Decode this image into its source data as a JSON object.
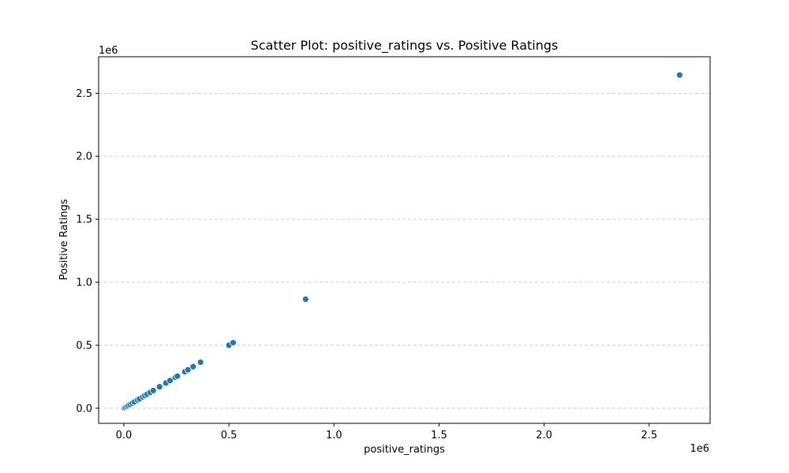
{
  "chart_data": {
    "type": "scatter",
    "title": "Scatter Plot: positive_ratings vs. Positive Ratings",
    "xlabel": "positive_ratings",
    "ylabel": "Positive Ratings",
    "x_scale_label": "1e6",
    "y_scale_label": "1e6",
    "xlim": [
      -120000,
      2790000
    ],
    "ylim": [
      -120000,
      2790000
    ],
    "x_ticks": [
      {
        "value": 0,
        "label": "0.0"
      },
      {
        "value": 500000,
        "label": "0.5"
      },
      {
        "value": 1000000,
        "label": "1.0"
      },
      {
        "value": 1500000,
        "label": "1.5"
      },
      {
        "value": 2000000,
        "label": "2.0"
      },
      {
        "value": 2500000,
        "label": "2.5"
      }
    ],
    "y_ticks": [
      {
        "value": 0,
        "label": "0.0"
      },
      {
        "value": 500000,
        "label": "0.5"
      },
      {
        "value": 1000000,
        "label": "1.0"
      },
      {
        "value": 1500000,
        "label": "1.5"
      },
      {
        "value": 2000000,
        "label": "2.0"
      },
      {
        "value": 2500000,
        "label": "2.5"
      }
    ],
    "grid": {
      "y": true,
      "x": false,
      "style": "dashed"
    },
    "colors": {
      "marker": "#1f77b4",
      "marker_edge": "#ffffff",
      "grid": "#c4c4c4",
      "axes": "#000000"
    },
    "points": [
      {
        "x": 0,
        "y": 0
      },
      {
        "x": 3000,
        "y": 3000
      },
      {
        "x": 8000,
        "y": 8000
      },
      {
        "x": 15000,
        "y": 15000
      },
      {
        "x": 22000,
        "y": 22000
      },
      {
        "x": 30000,
        "y": 30000
      },
      {
        "x": 40000,
        "y": 40000
      },
      {
        "x": 50000,
        "y": 50000
      },
      {
        "x": 65000,
        "y": 65000
      },
      {
        "x": 75000,
        "y": 75000
      },
      {
        "x": 90000,
        "y": 90000
      },
      {
        "x": 100000,
        "y": 100000
      },
      {
        "x": 110000,
        "y": 110000
      },
      {
        "x": 125000,
        "y": 125000
      },
      {
        "x": 140000,
        "y": 140000
      },
      {
        "x": 170000,
        "y": 170000
      },
      {
        "x": 200000,
        "y": 200000
      },
      {
        "x": 220000,
        "y": 220000
      },
      {
        "x": 245000,
        "y": 245000
      },
      {
        "x": 255000,
        "y": 255000
      },
      {
        "x": 290000,
        "y": 290000
      },
      {
        "x": 305000,
        "y": 305000
      },
      {
        "x": 330000,
        "y": 330000
      },
      {
        "x": 365000,
        "y": 365000
      },
      {
        "x": 500000,
        "y": 500000
      },
      {
        "x": 520000,
        "y": 520000
      },
      {
        "x": 865000,
        "y": 865000
      },
      {
        "x": 2645000,
        "y": 2645000
      }
    ]
  }
}
